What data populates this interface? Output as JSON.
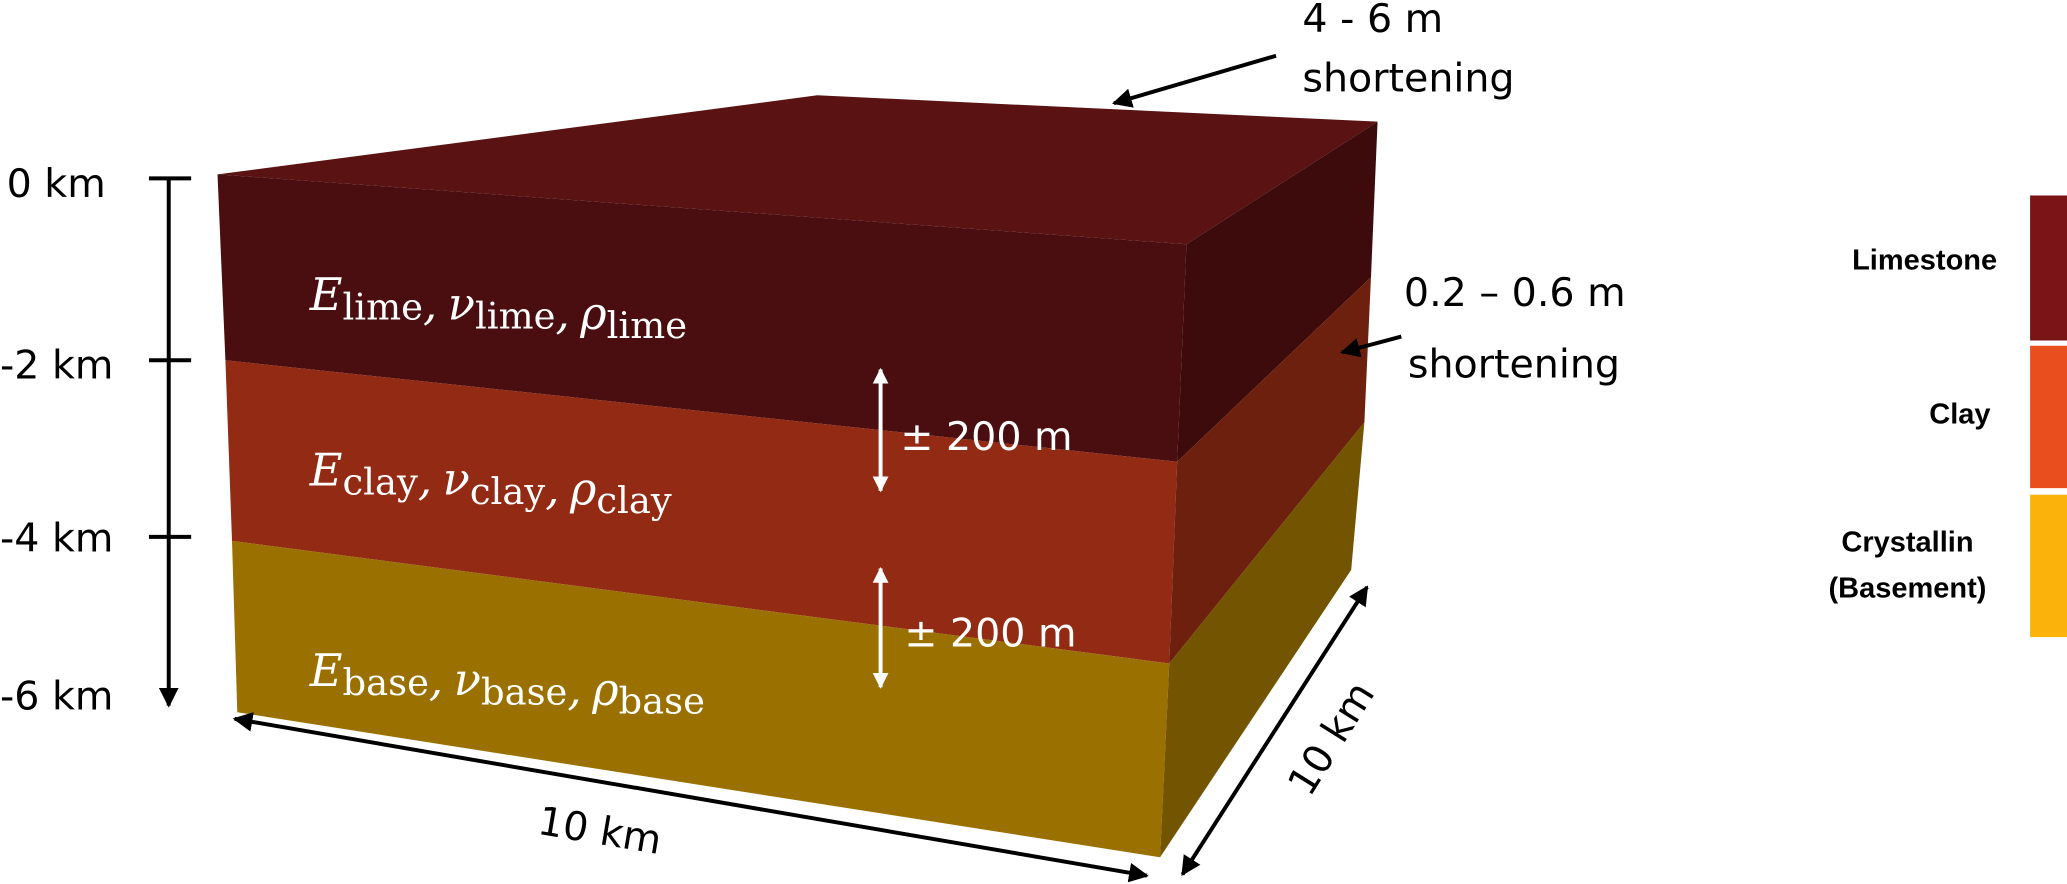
{
  "depth_axis": {
    "ticks": [
      "0 km",
      "-2 km",
      "-4 km",
      "-6 km"
    ]
  },
  "layers": {
    "separator": ",",
    "items": [
      {
        "params": [
          {
            "symbol": "E",
            "subscript": "lime"
          },
          {
            "symbol": "ν",
            "subscript": "lime"
          },
          {
            "symbol": "ρ",
            "subscript": "lime"
          }
        ]
      },
      {
        "params": [
          {
            "symbol": "E",
            "subscript": "clay"
          },
          {
            "symbol": "ν",
            "subscript": "clay"
          },
          {
            "symbol": "ρ",
            "subscript": "clay"
          }
        ]
      },
      {
        "params": [
          {
            "symbol": "E",
            "subscript": "base"
          },
          {
            "symbol": "ν",
            "subscript": "base"
          },
          {
            "symbol": "ρ",
            "subscript": "base"
          }
        ]
      }
    ]
  },
  "annotations": {
    "top_shortening": {
      "amount": "4 - 6 m",
      "text": "shortening"
    },
    "side_shortening": {
      "amount": "0.2 – 0.6 m",
      "text": "shortening"
    },
    "interface_upper": "± 200 m",
    "interface_lower": "± 200 m",
    "width": "10 km",
    "depth": "10 km"
  },
  "legend": {
    "items": [
      {
        "label": "Limestone"
      },
      {
        "label": "Clay"
      },
      {
        "label": [
          "Crystallin",
          "(Basement)"
        ]
      }
    ]
  }
}
